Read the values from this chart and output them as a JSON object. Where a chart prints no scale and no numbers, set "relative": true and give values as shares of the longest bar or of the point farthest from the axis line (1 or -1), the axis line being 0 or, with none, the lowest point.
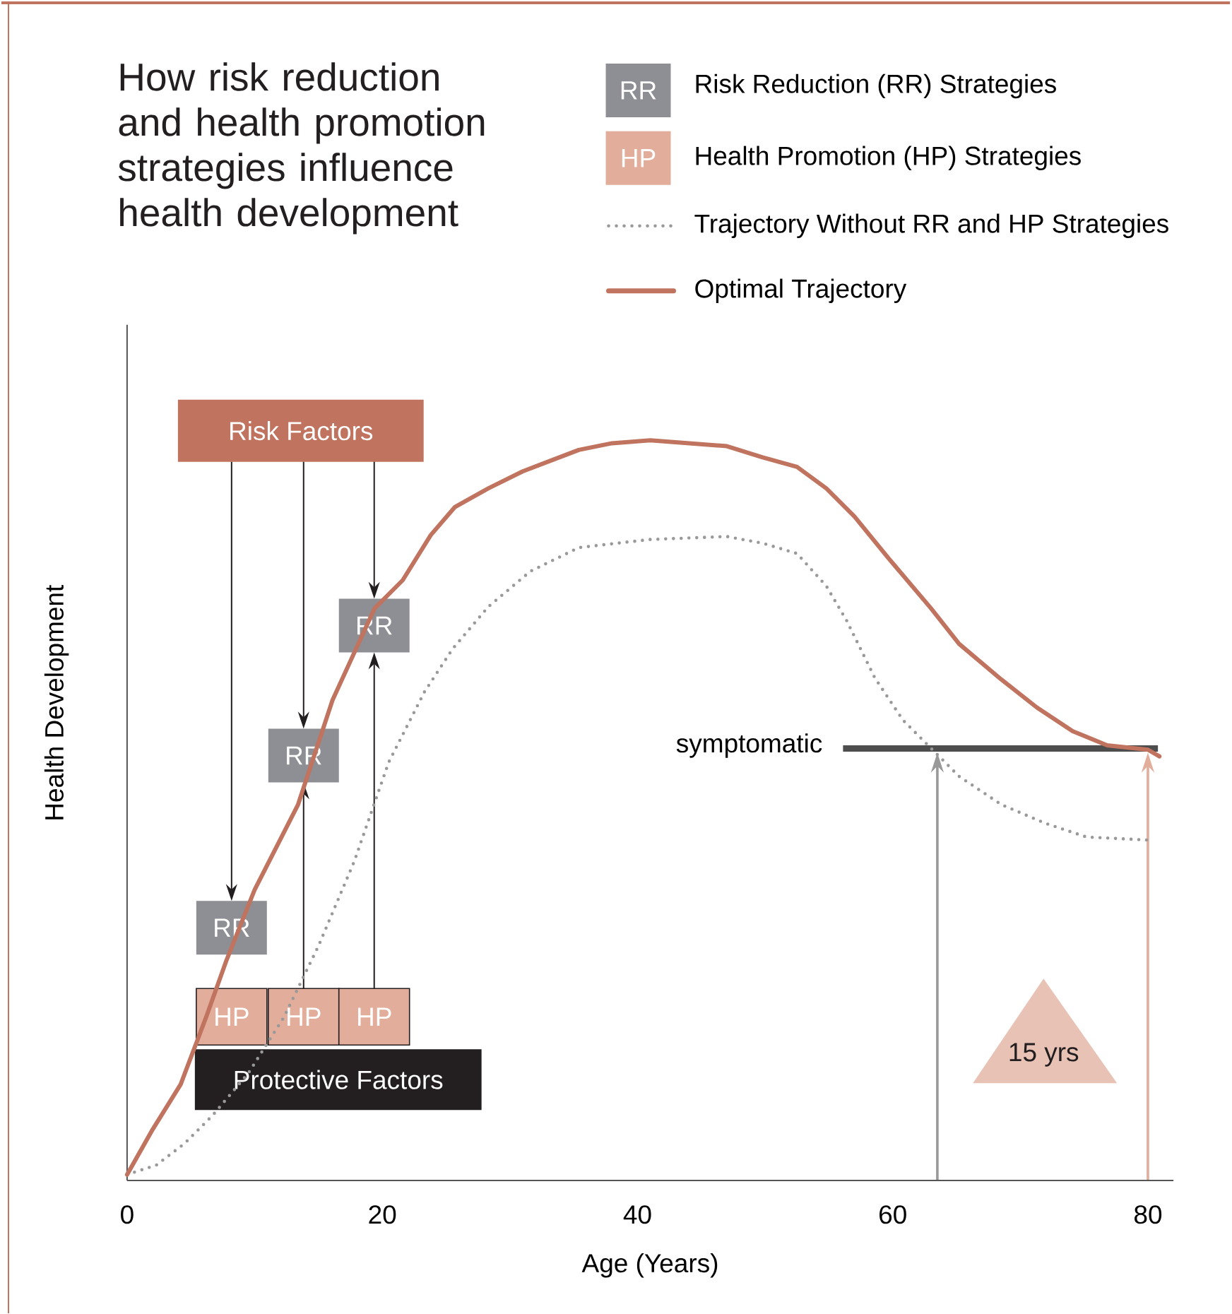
{
  "chart_data": {
    "type": "line",
    "relative": true,
    "title": "How risk reduction and health promotion strategies influence health development",
    "xlabel": "Age (Years)",
    "ylabel": "Health Development",
    "xlim": [
      0,
      82
    ],
    "xticks": [
      0,
      20,
      40,
      60,
      80
    ],
    "tick_labels": "x",
    "legend": "top",
    "series": [
      {
        "name": "Trajectory Without RR and HP Strategies",
        "color": "#999999",
        "line_style": "dotted",
        "x": [
          0,
          2.3,
          4.5,
          6.7,
          9.5,
          12.3,
          15,
          17.8,
          20.5,
          23.3,
          25.5,
          28.3,
          31.6,
          35.4,
          41,
          47,
          49.8,
          52.5,
          54.8,
          56.4,
          58.6,
          60.8,
          63,
          65.2,
          68.5,
          71.9,
          75.2,
          80
        ],
        "values": [
          0.008,
          0.021,
          0.05,
          0.088,
          0.145,
          0.221,
          0.317,
          0.431,
          0.565,
          0.66,
          0.718,
          0.775,
          0.823,
          0.855,
          0.866,
          0.87,
          0.861,
          0.847,
          0.803,
          0.756,
          0.679,
          0.622,
          0.584,
          0.546,
          0.508,
          0.483,
          0.464,
          0.46
        ]
      },
      {
        "name": "Optimal Trajectory",
        "color": "#c0735e",
        "line_style": "solid",
        "x": [
          0,
          2,
          4.2,
          6.2,
          7.8,
          10,
          13.4,
          16.1,
          19.4,
          21.6,
          23.8,
          25.7,
          28.3,
          31,
          35.4,
          38,
          41,
          47,
          49.8,
          52.5,
          54.8,
          57,
          59.7,
          63,
          65.2,
          68.5,
          71.3,
          74.1,
          76.8,
          80,
          80.9
        ],
        "values": [
          0.008,
          0.069,
          0.13,
          0.221,
          0.298,
          0.393,
          0.508,
          0.649,
          0.773,
          0.811,
          0.872,
          0.91,
          0.935,
          0.958,
          0.987,
          0.996,
          1,
          0.992,
          0.977,
          0.964,
          0.935,
          0.897,
          0.84,
          0.773,
          0.725,
          0.677,
          0.639,
          0.607,
          0.588,
          0.582,
          0.573
        ]
      }
    ],
    "annotations": [
      "RR",
      "Risk Reduction (RR) Strategies",
      "HP",
      "Health Promotion (HP) Strategies",
      "Risk Factors",
      "Protective Factors",
      "RR",
      "RR",
      "RR",
      "HP",
      "HP",
      "HP",
      "symptomatic",
      "15 yrs"
    ],
    "ref_lines": [
      {
        "axis": "x",
        "value": 63.5,
        "color": "#999999"
      },
      {
        "axis": "x",
        "value": 80,
        "color": "#e2ad9b"
      }
    ]
  }
}
